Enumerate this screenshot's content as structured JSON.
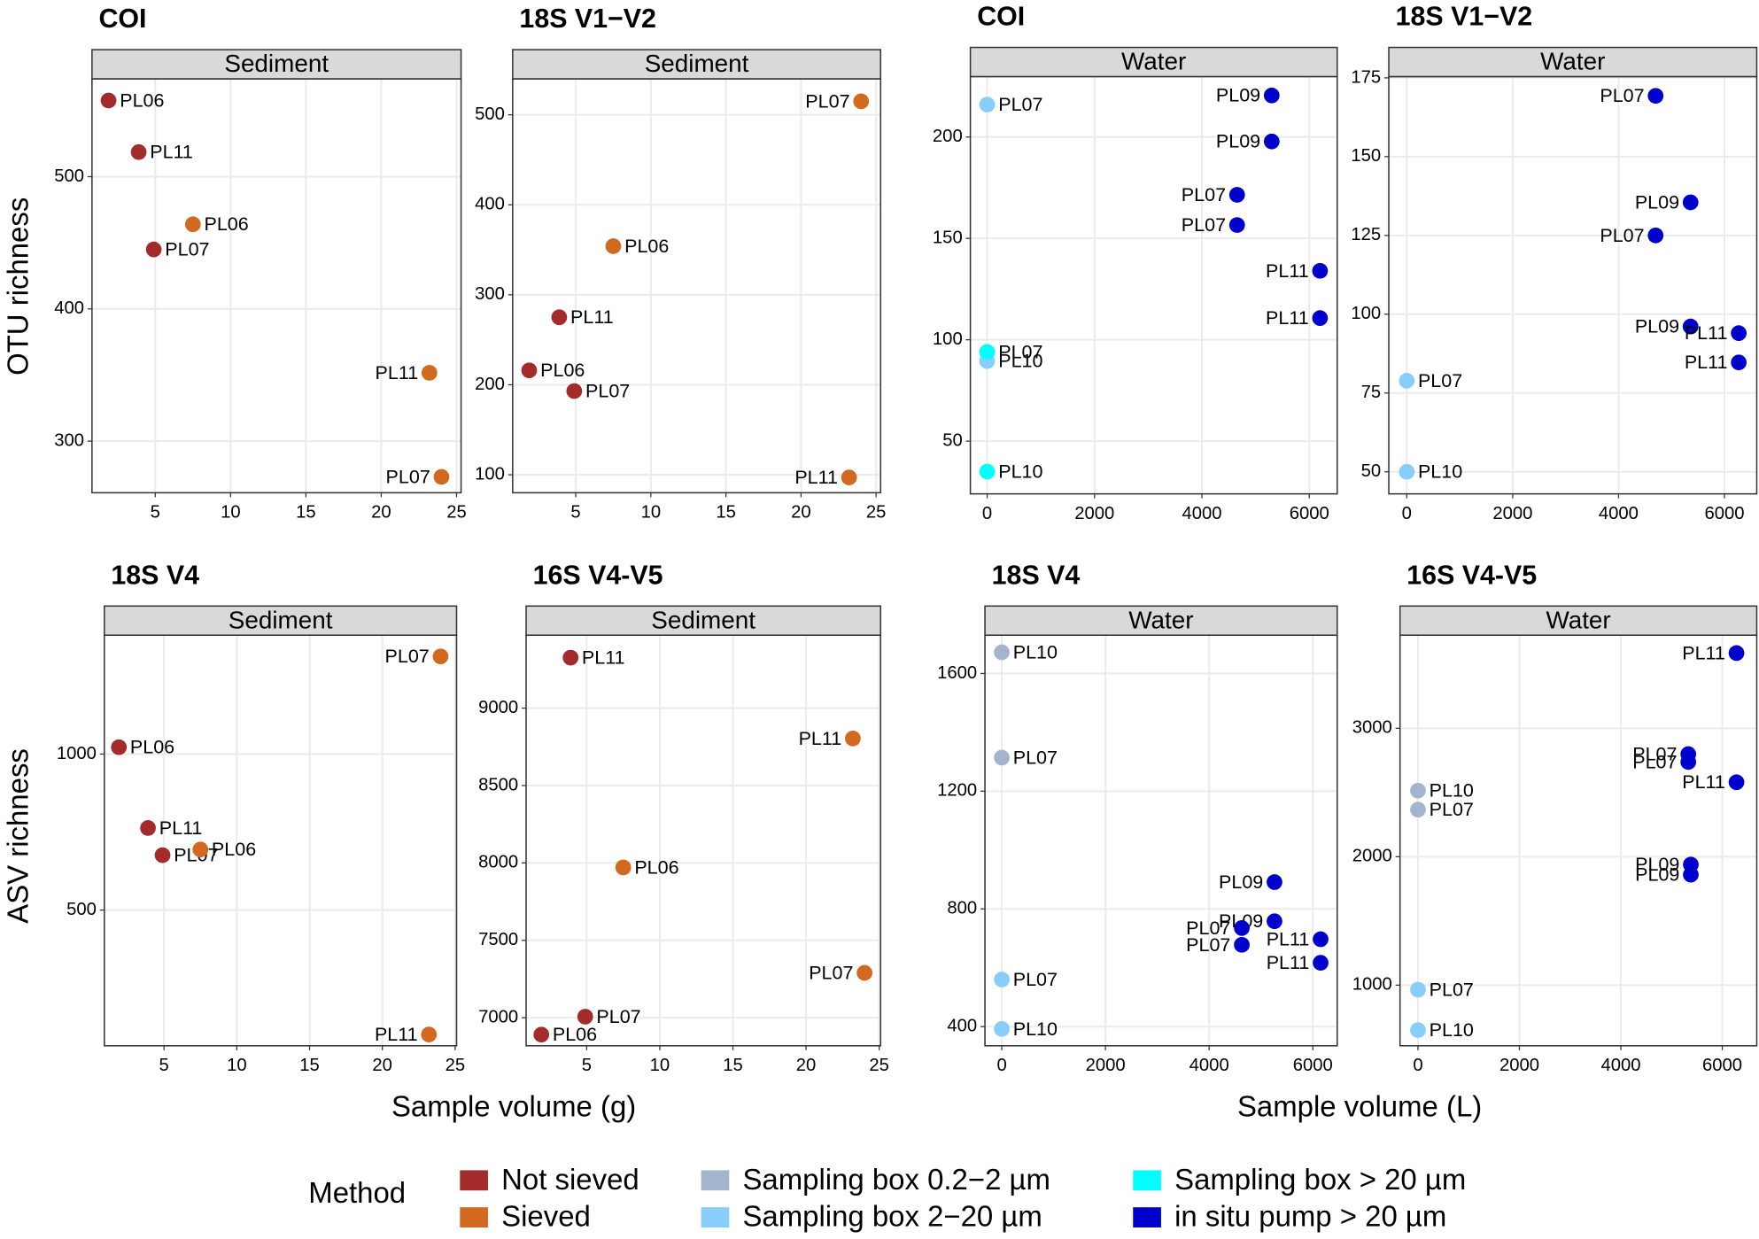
{
  "chart_data": [
    {
      "type": "scatter",
      "title": "COI",
      "facet": "Sediment",
      "xlim": [
        0.8,
        25.3
      ],
      "xticks": [
        5,
        10,
        15,
        20,
        25
      ],
      "ylim": [
        261,
        574
      ],
      "yticks": [
        300,
        400,
        500
      ],
      "grid": true,
      "series": [
        {
          "name": "Not sieved",
          "color": "#a32b2b",
          "x": [
            1.9,
            3.9,
            4.9
          ],
          "y": [
            557.6,
            518.6,
            445
          ],
          "labels": [
            "PL06",
            "PL11",
            "PL07"
          ]
        },
        {
          "name": "Sieved",
          "color": "#d2691e",
          "x": [
            7.5,
            23.2,
            24.0
          ],
          "y": [
            464,
            351.7,
            273
          ],
          "labels": [
            "PL06",
            "PL11",
            "PL07"
          ]
        }
      ]
    },
    {
      "type": "scatter",
      "title": "18S V1−V2",
      "facet": "Sediment",
      "xlim": [
        0.8,
        25.3
      ],
      "xticks": [
        5,
        10,
        15,
        20,
        25
      ],
      "ylim": [
        80,
        540
      ],
      "yticks": [
        100,
        200,
        300,
        400,
        500
      ],
      "grid": true,
      "series": [
        {
          "name": "Not sieved",
          "color": "#a32b2b",
          "x": [
            1.9,
            3.9,
            4.9
          ],
          "y": [
            216,
            275,
            193
          ],
          "labels": [
            "PL06",
            "PL11",
            "PL07"
          ]
        },
        {
          "name": "Sieved",
          "color": "#d2691e",
          "x": [
            7.5,
            23.2,
            24.0
          ],
          "y": [
            354,
            97,
            515
          ],
          "labels": [
            "PL06",
            "PL11",
            "PL07"
          ]
        }
      ]
    },
    {
      "type": "scatter",
      "title": "COI",
      "facet": "Water",
      "xlim": [
        -313,
        6520
      ],
      "xticks": [
        0,
        2000,
        4000,
        6000
      ],
      "ylim": [
        24,
        229.8
      ],
      "yticks": [
        50,
        100,
        150,
        200
      ],
      "grid": true,
      "series": [
        {
          "name": "Sampling box 2−20 µm",
          "color": "#87cefa",
          "x": [
            0,
            0
          ],
          "y": [
            216,
            89.5
          ],
          "labels": [
            "PL07",
            "PL10"
          ]
        },
        {
          "name": "Sampling box > 20 µm",
          "color": "#00ffff",
          "x": [
            0,
            0
          ],
          "y": [
            94,
            35
          ],
          "labels": [
            "PL07",
            "PL10"
          ]
        },
        {
          "name": "in situ pump > 20 µm",
          "color": "#0000cd",
          "x": [
            5300,
            5300,
            4655,
            4655,
            6200,
            6200
          ],
          "y": [
            220.5,
            197.8,
            171.5,
            156.6,
            134,
            110.7
          ],
          "labels": [
            "PL09",
            "PL09",
            "PL07",
            "PL07",
            "PL11",
            "PL11"
          ]
        }
      ]
    },
    {
      "type": "scatter",
      "title": "18S V1−V2",
      "facet": "Water",
      "xlim": [
        -339,
        6610
      ],
      "xticks": [
        0,
        2000,
        4000,
        6000
      ],
      "ylim": [
        43,
        175.4
      ],
      "yticks": [
        50,
        75,
        100,
        125,
        150,
        175
      ],
      "grid": true,
      "series": [
        {
          "name": "Sampling box 2−20 µm",
          "color": "#87cefa",
          "x": [
            0,
            0
          ],
          "y": [
            78.9,
            50
          ],
          "labels": [
            "PL07",
            "PL10"
          ]
        },
        {
          "name": "in situ pump > 20 µm",
          "color": "#0000cd",
          "x": [
            4700,
            5360,
            4700,
            5360,
            6270,
            6270
          ],
          "y": [
            169.3,
            135.5,
            125,
            96.1,
            94,
            84.7
          ],
          "labels": [
            "PL07",
            "PL09",
            "PL07",
            "PL09",
            "PL11",
            "PL11"
          ]
        }
      ]
    },
    {
      "type": "scatter",
      "title": "18S V4",
      "facet": "Sediment",
      "xlim": [
        0.9,
        25.1
      ],
      "xticks": [
        5,
        10,
        15,
        20,
        25
      ],
      "ylim": [
        65,
        1381
      ],
      "yticks": [
        500,
        1000
      ],
      "grid": true,
      "series": [
        {
          "name": "Not sieved",
          "color": "#a32b2b",
          "x": [
            1.9,
            3.9,
            4.9
          ],
          "y": [
            1022,
            763,
            676
          ],
          "labels": [
            "PL06",
            "PL11",
            "PL07"
          ]
        },
        {
          "name": "Sieved",
          "color": "#d2691e",
          "x": [
            7.5,
            23.2,
            24.0
          ],
          "y": [
            694,
            101,
            1313
          ],
          "labels": [
            "PL06",
            "PL11",
            "PL07"
          ]
        }
      ]
    },
    {
      "type": "scatter",
      "title": "16S V4-V5",
      "facet": "Sediment",
      "xlim": [
        0.86,
        25.1
      ],
      "xticks": [
        5,
        10,
        15,
        20,
        25
      ],
      "ylim": [
        6819,
        9471
      ],
      "yticks": [
        7000,
        7500,
        8000,
        8500,
        9000
      ],
      "grid": true,
      "series": [
        {
          "name": "Not sieved",
          "color": "#a32b2b",
          "x": [
            1.9,
            3.9,
            4.9
          ],
          "y": [
            6891,
            9326,
            7007
          ],
          "labels": [
            "PL06",
            "PL11",
            "PL07"
          ]
        },
        {
          "name": "Sieved",
          "color": "#d2691e",
          "x": [
            7.5,
            23.2,
            24.0
          ],
          "y": [
            7971,
            8804,
            7290
          ],
          "labels": [
            "PL06",
            "PL11",
            "PL07"
          ]
        }
      ]
    },
    {
      "type": "scatter",
      "title": "18S V4",
      "facet": "Water",
      "xlim": [
        -325,
        6470
      ],
      "xticks": [
        0,
        2000,
        4000,
        6000
      ],
      "ylim": [
        335,
        1730
      ],
      "yticks": [
        400,
        800,
        1200,
        1600
      ],
      "grid": true,
      "series": [
        {
          "name": "Sampling box 0.2−2 µm",
          "color": "#a2b5cd",
          "x": [
            0,
            0
          ],
          "y": [
            1672,
            1314
          ],
          "labels": [
            "PL10",
            "PL07"
          ]
        },
        {
          "name": "Sampling box 2−20 µm",
          "color": "#87cefa",
          "x": [
            0,
            0
          ],
          "y": [
            560,
            392
          ],
          "labels": [
            "PL07",
            "PL10"
          ]
        },
        {
          "name": "in situ pump > 20 µm",
          "color": "#0000cd",
          "x": [
            5260,
            5260,
            4630,
            4630,
            6150,
            6150
          ],
          "y": [
            891,
            758,
            735,
            678,
            697,
            617
          ],
          "labels": [
            "PL09",
            "PL09",
            "PL07",
            "PL07",
            "PL11",
            "PL11"
          ]
        }
      ]
    },
    {
      "type": "scatter",
      "title": "16S V4-V5",
      "facet": "Water",
      "xlim": [
        -354,
        6680
      ],
      "xticks": [
        0,
        2000,
        4000,
        6000
      ],
      "ylim": [
        528,
        3725
      ],
      "yticks": [
        1000,
        2000,
        3000
      ],
      "grid": true,
      "series": [
        {
          "name": "Sampling box 0.2−2 µm",
          "color": "#a2b5cd",
          "x": [
            0,
            0
          ],
          "y": [
            2515,
            2367
          ],
          "labels": [
            "PL10",
            "PL07"
          ]
        },
        {
          "name": "Sampling box 2−20 µm",
          "color": "#87cefa",
          "x": [
            0,
            0
          ],
          "y": [
            965,
            650
          ],
          "labels": [
            "PL07",
            "PL10"
          ]
        },
        {
          "name": "in situ pump > 20 µm",
          "color": "#0000cd",
          "x": [
            6280,
            5330,
            5330,
            6280,
            5380,
            5380
          ],
          "y": [
            3586,
            2799,
            2738,
            2580,
            1939,
            1860
          ],
          "labels": [
            "PL11",
            "PL07",
            "PL07",
            "PL11",
            "PL09",
            "PL09"
          ]
        }
      ]
    }
  ],
  "y_labels": [
    "OTU richness",
    "ASV richness"
  ],
  "x_labels": [
    "Sample volume (g)",
    "Sample volume (L)"
  ],
  "legend": {
    "title": "Method",
    "entries": [
      {
        "name": "Not sieved",
        "color": "#a32b2b"
      },
      {
        "name": "Sieved",
        "color": "#d2691e"
      },
      {
        "name": "Sampling box 0.2−2 µm",
        "color": "#a2b5cd"
      },
      {
        "name": "Sampling box 2−20 µm",
        "color": "#87cefa"
      },
      {
        "name": "Sampling box > 20 µm",
        "color": "#00ffff"
      },
      {
        "name": "in situ pump > 20 µm",
        "color": "#0000cd"
      }
    ]
  }
}
